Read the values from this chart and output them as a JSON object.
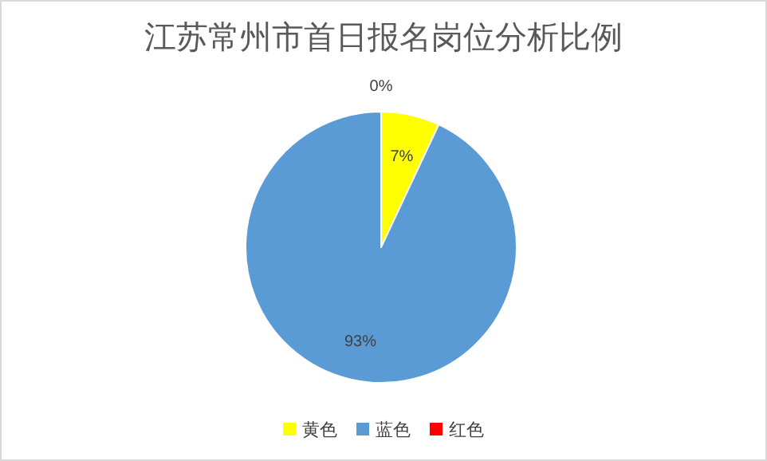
{
  "chart_data": {
    "type": "pie",
    "title": "江苏常州市首日报名岗位分析比例",
    "categories": [
      "黄色",
      "蓝色",
      "红色"
    ],
    "values": [
      7,
      93,
      0
    ],
    "colors": [
      "#ffff00",
      "#5b9bd5",
      "#ff0000"
    ],
    "value_labels": [
      "7%",
      "93%",
      "0%"
    ],
    "legend": "bottom"
  }
}
